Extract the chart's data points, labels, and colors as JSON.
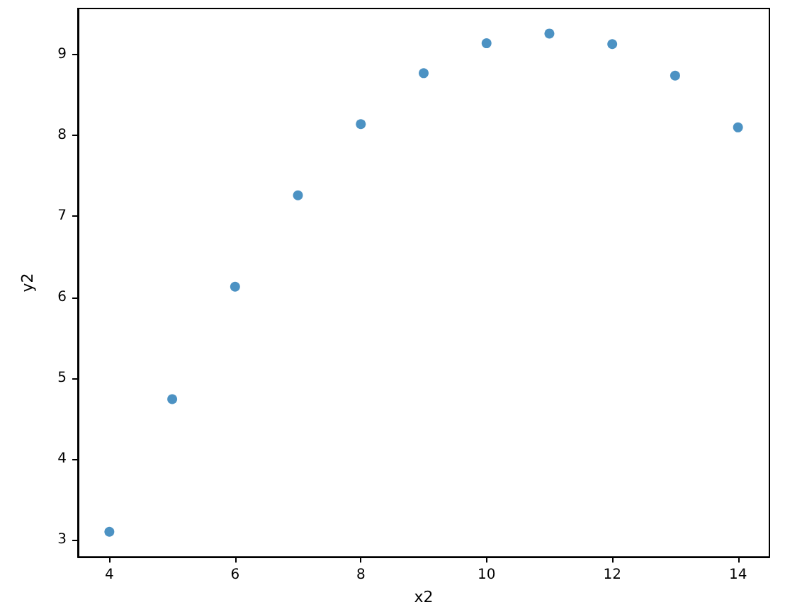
{
  "chart_data": {
    "type": "scatter",
    "xlabel": "x2",
    "ylabel": "y2",
    "x": [
      10,
      8,
      13,
      9,
      11,
      14,
      6,
      4,
      12,
      7,
      5
    ],
    "values": [
      9.14,
      8.14,
      8.74,
      8.77,
      9.26,
      8.1,
      6.13,
      3.1,
      9.13,
      7.26,
      4.74
    ],
    "color": "#1f77b4",
    "marker": "circle",
    "xlim": [
      3.5,
      14.5
    ],
    "xticks": [
      4,
      6,
      8,
      10,
      12,
      14
    ],
    "ylim": [
      2.79,
      9.57
    ],
    "yticks": [
      3,
      4,
      5,
      6,
      7,
      8,
      9
    ],
    "grid": false
  }
}
